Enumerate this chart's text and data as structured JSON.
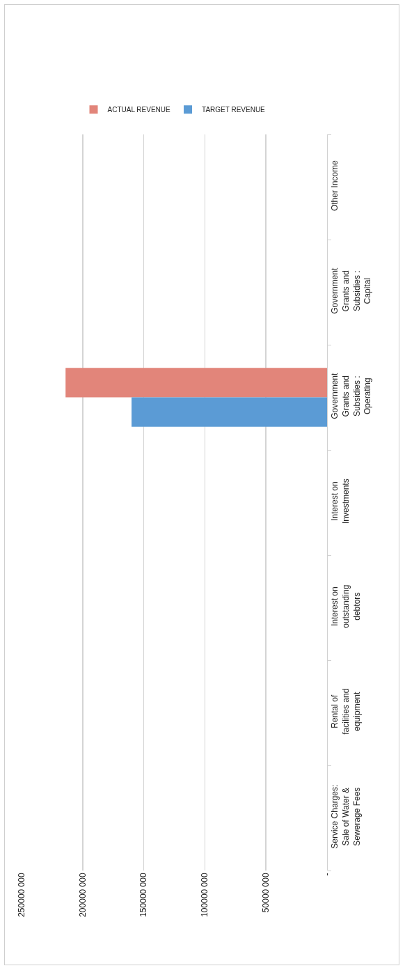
{
  "chart_data": {
    "type": "bar",
    "orientation": "horizontal",
    "categories": [
      "Other Income",
      "Government Grants and Subsidies : Capital",
      "Government Grants and Subsidies : Operating",
      "Interest on Investments",
      "Interest on outstanding debtors",
      "Rental of facilities and equipment",
      "Service Charges: Sale of Water & Sewerage Fees"
    ],
    "series": [
      {
        "name": "ACTUAL REVENUE",
        "color": "#e2857a",
        "values": [
          0,
          0,
          214000000,
          0,
          0,
          0,
          0
        ]
      },
      {
        "name": "TARGET REVENUE",
        "color": "#5b9bd5",
        "values": [
          0,
          0,
          160000000,
          0,
          0,
          0,
          0
        ]
      }
    ],
    "xlim": [
      250000000,
      0
    ],
    "xticks": [
      {
        "value": 250000000,
        "label": "250000 000"
      },
      {
        "value": 200000000,
        "label": "200000 000"
      },
      {
        "value": 150000000,
        "label": "150000 000"
      },
      {
        "value": 100000000,
        "label": "100000 000"
      },
      {
        "value": 50000000,
        "label": "50000 000"
      },
      {
        "value": 0,
        "label": "-"
      }
    ],
    "grid": "x",
    "legend": "top"
  }
}
